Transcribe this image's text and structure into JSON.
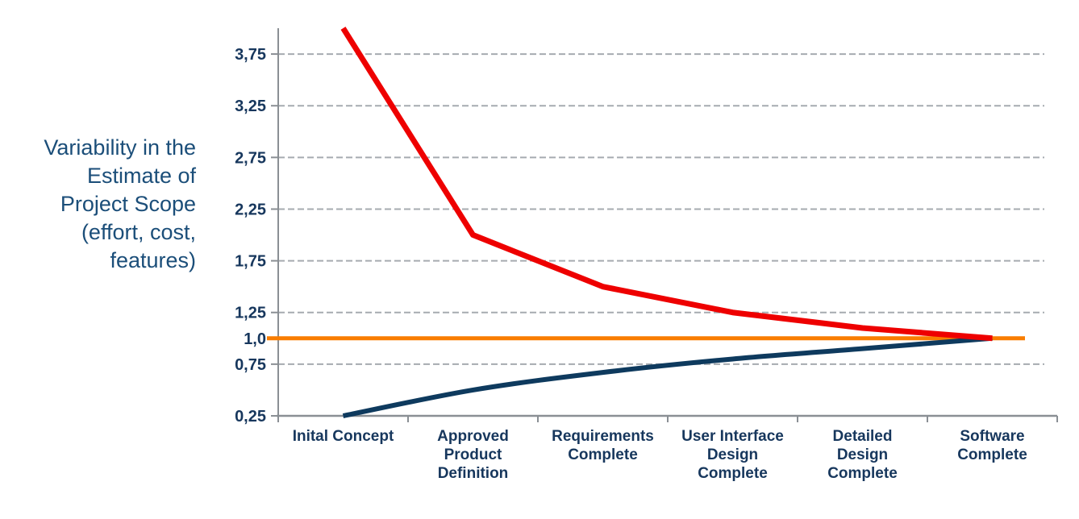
{
  "page": {
    "background": "#FFFFFF"
  },
  "y_axis_title": {
    "lines": [
      "Variability in the",
      "Estimate of",
      "Project Scope",
      "(effort, cost,",
      "features)"
    ],
    "full_text": "Variability in the Estimate of Project Scope (effort, cost, features)"
  },
  "colors": {
    "upper_bound_line": "#EE0000",
    "lower_bound_line": "#0E3A5E",
    "baseline_line": "#F97D00",
    "tick_label_text": "#17375D",
    "category_label_text": "#17375D",
    "axis_title_text": "#1B4E79",
    "gridline": "#A6ABB0",
    "axis_line": "#8A8F94"
  },
  "chart_data": {
    "type": "line",
    "title": "",
    "legend": "none",
    "grid": "dashed horizontal gridlines",
    "categories": [
      "Inital Concept",
      "Approved Product Definition",
      "Requirements Complete",
      "User Interface Design Complete",
      "Detailed Design Complete",
      "Software Complete"
    ],
    "category_label_lines": [
      [
        "Inital Concept"
      ],
      [
        "Approved",
        "Product",
        "Definition"
      ],
      [
        "Requirements",
        "Complete"
      ],
      [
        "User Interface",
        "Design",
        "Complete"
      ],
      [
        "Detailed",
        "Design",
        "Complete"
      ],
      [
        "Software",
        "Complete"
      ]
    ],
    "series": [
      {
        "name": "baseline_actual_scope",
        "color": "#F97D00",
        "stroke_width": 5,
        "smooth": false,
        "full_span": true,
        "values": [
          1.0,
          1.0,
          1.0,
          1.0,
          1.0,
          1.0
        ]
      },
      {
        "name": "lower_estimate_bound",
        "color": "#0E3A5E",
        "stroke_width": 6,
        "smooth": true,
        "full_span": false,
        "values": [
          0.25,
          0.5,
          0.67,
          0.8,
          0.9,
          1.0
        ]
      },
      {
        "name": "upper_estimate_bound",
        "color": "#EE0000",
        "stroke_width": 7,
        "smooth": false,
        "full_span": false,
        "values": [
          4.0,
          2.0,
          1.5,
          1.25,
          1.1,
          1.0
        ]
      }
    ],
    "y_axis": {
      "min": 0.25,
      "max": 4.0,
      "ticks": [
        {
          "label": "3,75",
          "value": 3.75
        },
        {
          "label": "3,25",
          "value": 3.25
        },
        {
          "label": "2,75",
          "value": 2.75
        },
        {
          "label": "2,25",
          "value": 2.25
        },
        {
          "label": "1,75",
          "value": 1.75
        },
        {
          "label": "1,25",
          "value": 1.25
        },
        {
          "label": "1,0",
          "value": 1.0
        },
        {
          "label": "0,75",
          "value": 0.75
        },
        {
          "label": "0,25",
          "value": 0.25
        }
      ],
      "gridlines": [
        3.75,
        3.25,
        2.75,
        2.25,
        1.75,
        1.25,
        0.75,
        0.25
      ],
      "gridline_style": "dashed"
    },
    "x_axis": {
      "boundary_tick_count": 7
    }
  }
}
